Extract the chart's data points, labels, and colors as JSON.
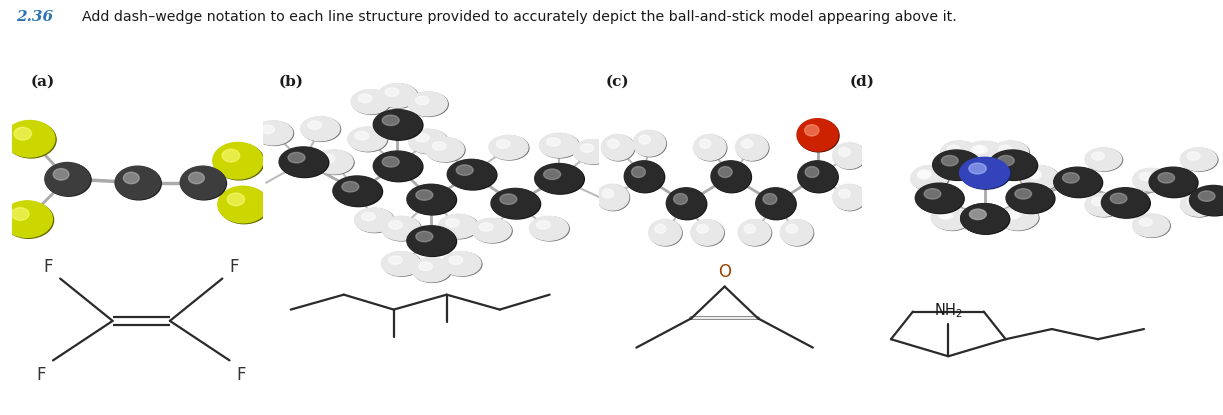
{
  "title_number": "2.36",
  "title_text": "Add dash–wedge notation to each line structure provided to accurately depict the ball-and-stick model appearing above it.",
  "title_number_color": "#2e75b6",
  "title_text_color": "#1a1a1a",
  "background_color": "#ffffff",
  "labels": [
    "(a)",
    "(b)",
    "(c)",
    "(d)"
  ],
  "carbon_color": "#3d3d3d",
  "carbon_dark": "#2a2a2a",
  "hydrogen_color": "#e8e8e8",
  "hydrogen_edge": "#cccccc",
  "sulfur_color": "#ccd600",
  "oxygen_color": "#cc2200",
  "nitrogen_color": "#3344bb",
  "bond_color": "#999999",
  "line_color": "#2a2a2a",
  "F_color": "#666600",
  "O_label_color": "#994400"
}
